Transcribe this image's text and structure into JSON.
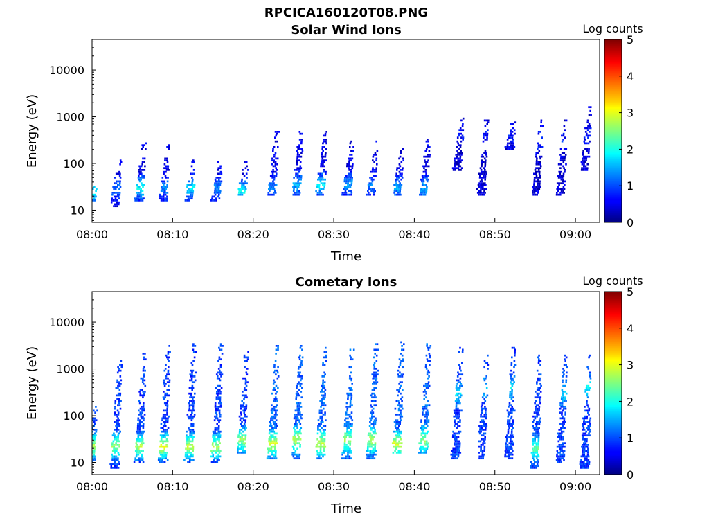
{
  "figure_title": "RPCICA160120T08.PNG",
  "chart_data": [
    {
      "type": "heatmap",
      "title": "Solar Wind Ions",
      "xlabel": "Time",
      "ylabel": "Energy (eV)",
      "x_ticks": [
        "08:00",
        "08:10",
        "08:20",
        "08:30",
        "08:40",
        "08:50",
        "09:00"
      ],
      "x_range_minutes": [
        0,
        63
      ],
      "y_ticks": [
        "10",
        "100",
        "1000",
        "10000"
      ],
      "y_scale": "log",
      "y_range_eV": [
        5.5,
        45000
      ],
      "colorbar": {
        "label": "Log counts",
        "ticks": [
          "0",
          "1",
          "2",
          "3",
          "4",
          "5"
        ],
        "range": [
          0,
          5
        ],
        "colormap": "jet"
      },
      "sweeps": [
        {
          "t": 0.5,
          "e_min": 15,
          "e_max": 35,
          "level": 0.8,
          "peak_level": 1.9,
          "peak_eV": 25
        },
        {
          "t": 3.5,
          "e_min": 12,
          "e_max": 150,
          "level": 0.5,
          "peak_level": 1.2,
          "peak_eV": 30
        },
        {
          "t": 6.5,
          "e_min": 15,
          "e_max": 280,
          "level": 0.5,
          "peak_level": 1.9,
          "peak_eV": 30
        },
        {
          "t": 9.5,
          "e_min": 15,
          "e_max": 300,
          "level": 0.5,
          "peak_level": 1.3,
          "peak_eV": 30
        },
        {
          "t": 12.7,
          "e_min": 15,
          "e_max": 120,
          "level": 0.5,
          "peak_level": 1.8,
          "peak_eV": 30
        },
        {
          "t": 16.0,
          "e_min": 15,
          "e_max": 150,
          "level": 0.5,
          "peak_level": 1.3,
          "peak_eV": 30
        },
        {
          "t": 19.2,
          "e_min": 20,
          "e_max": 110,
          "level": 0.5,
          "peak_level": 1.9,
          "peak_eV": 25
        },
        {
          "t": 23.0,
          "e_min": 20,
          "e_max": 480,
          "level": 0.5,
          "peak_level": 1.3,
          "peak_eV": 30
        },
        {
          "t": 26.0,
          "e_min": 20,
          "e_max": 500,
          "level": 0.5,
          "peak_level": 1.5,
          "peak_eV": 35
        },
        {
          "t": 29.0,
          "e_min": 20,
          "e_max": 480,
          "level": 0.5,
          "peak_level": 1.8,
          "peak_eV": 35
        },
        {
          "t": 32.3,
          "e_min": 20,
          "e_max": 300,
          "level": 0.5,
          "peak_level": 1.4,
          "peak_eV": 35
        },
        {
          "t": 35.3,
          "e_min": 20,
          "e_max": 300,
          "level": 0.5,
          "peak_level": 1.2,
          "peak_eV": 35
        },
        {
          "t": 38.5,
          "e_min": 20,
          "e_max": 220,
          "level": 0.5,
          "peak_level": 1.4,
          "peak_eV": 30
        },
        {
          "t": 41.8,
          "e_min": 20,
          "e_max": 400,
          "level": 0.5,
          "peak_level": 1.5,
          "peak_eV": 30
        },
        {
          "t": 46.0,
          "e_min": 70,
          "e_max": 1000,
          "level": 0.4,
          "peak_level": 0.7,
          "peak_eV": 400
        },
        {
          "t": 49.0,
          "e_min": 20,
          "e_max": 1000,
          "level": 0.4,
          "peak_level": 0.7,
          "peak_eV": 400
        },
        {
          "t": 52.5,
          "e_min": 200,
          "e_max": 1000,
          "level": 0.4,
          "peak_level": 0.7,
          "peak_eV": 400
        },
        {
          "t": 55.8,
          "e_min": 20,
          "e_max": 1000,
          "level": 0.4,
          "peak_level": 0.8,
          "peak_eV": 300
        },
        {
          "t": 58.8,
          "e_min": 20,
          "e_max": 1000,
          "level": 0.4,
          "peak_level": 0.8,
          "peak_eV": 300
        },
        {
          "t": 61.8,
          "e_min": 70,
          "e_max": 1700,
          "level": 0.4,
          "peak_level": 0.7,
          "peak_eV": 400
        }
      ]
    },
    {
      "type": "heatmap",
      "title": "Cometary Ions",
      "xlabel": "Time",
      "ylabel": "Energy (eV)",
      "x_ticks": [
        "08:00",
        "08:10",
        "08:20",
        "08:30",
        "08:40",
        "08:50",
        "09:00"
      ],
      "x_range_minutes": [
        0,
        63
      ],
      "y_ticks": [
        "10",
        "100",
        "1000",
        "10000"
      ],
      "y_scale": "log",
      "y_range_eV": [
        5.5,
        45000
      ],
      "colorbar": {
        "label": "Log counts",
        "ticks": [
          "0",
          "1",
          "2",
          "3",
          "4",
          "5"
        ],
        "range": [
          0,
          5
        ],
        "colormap": "jet"
      },
      "sweeps": [
        {
          "t": 0.5,
          "e_min": 10,
          "e_max": 180,
          "level": 1.0,
          "peak_level": 2.8,
          "peak_eV": 22
        },
        {
          "t": 3.5,
          "e_min": 7,
          "e_max": 1600,
          "level": 0.9,
          "peak_level": 2.6,
          "peak_eV": 22
        },
        {
          "t": 6.5,
          "e_min": 10,
          "e_max": 3000,
          "level": 0.9,
          "peak_level": 2.8,
          "peak_eV": 22
        },
        {
          "t": 9.5,
          "e_min": 10,
          "e_max": 3500,
          "level": 0.9,
          "peak_level": 3.0,
          "peak_eV": 22
        },
        {
          "t": 12.7,
          "e_min": 10,
          "e_max": 3500,
          "level": 0.9,
          "peak_level": 2.9,
          "peak_eV": 22
        },
        {
          "t": 16.0,
          "e_min": 10,
          "e_max": 3500,
          "level": 0.9,
          "peak_level": 2.8,
          "peak_eV": 22
        },
        {
          "t": 19.2,
          "e_min": 15,
          "e_max": 3000,
          "level": 0.9,
          "peak_level": 2.7,
          "peak_eV": 30
        },
        {
          "t": 23.0,
          "e_min": 12,
          "e_max": 3500,
          "level": 1.1,
          "peak_level": 2.9,
          "peak_eV": 25
        },
        {
          "t": 26.0,
          "e_min": 12,
          "e_max": 3500,
          "level": 1.1,
          "peak_level": 2.8,
          "peak_eV": 30
        },
        {
          "t": 29.0,
          "e_min": 12,
          "e_max": 3000,
          "level": 1.1,
          "peak_level": 2.9,
          "peak_eV": 25
        },
        {
          "t": 32.3,
          "e_min": 12,
          "e_max": 3000,
          "level": 1.1,
          "peak_level": 2.7,
          "peak_eV": 30
        },
        {
          "t": 35.3,
          "e_min": 12,
          "e_max": 3500,
          "level": 1.1,
          "peak_level": 2.8,
          "peak_eV": 30
        },
        {
          "t": 38.5,
          "e_min": 15,
          "e_max": 4000,
          "level": 1.1,
          "peak_level": 3.0,
          "peak_eV": 25
        },
        {
          "t": 41.8,
          "e_min": 15,
          "e_max": 3500,
          "level": 1.1,
          "peak_level": 2.6,
          "peak_eV": 30
        },
        {
          "t": 45.8,
          "e_min": 12,
          "e_max": 3000,
          "level": 0.9,
          "peak_level": 1.7,
          "peak_eV": 300
        },
        {
          "t": 49.0,
          "e_min": 12,
          "e_max": 2000,
          "level": 0.9,
          "peak_level": 1.7,
          "peak_eV": 400
        },
        {
          "t": 52.4,
          "e_min": 12,
          "e_max": 3000,
          "level": 0.9,
          "peak_level": 1.8,
          "peak_eV": 400
        },
        {
          "t": 55.6,
          "e_min": 7,
          "e_max": 2000,
          "level": 0.9,
          "peak_level": 2.3,
          "peak_eV": 20
        },
        {
          "t": 58.8,
          "e_min": 10,
          "e_max": 2000,
          "level": 0.9,
          "peak_level": 1.8,
          "peak_eV": 300
        },
        {
          "t": 61.8,
          "e_min": 7,
          "e_max": 2000,
          "level": 0.9,
          "peak_level": 1.8,
          "peak_eV": 400
        }
      ]
    }
  ]
}
